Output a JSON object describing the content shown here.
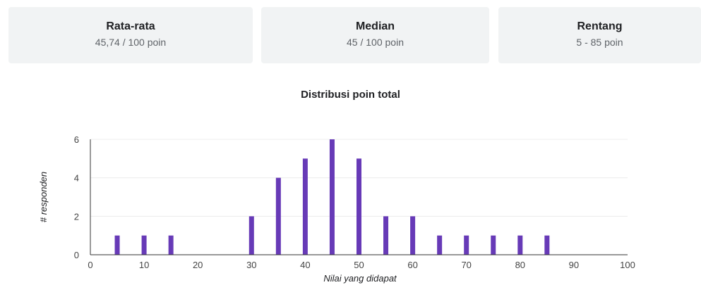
{
  "summary": {
    "mean": {
      "label": "Rata-rata",
      "value": "45,74 / 100 poin"
    },
    "median": {
      "label": "Median",
      "value": "45 / 100 poin"
    },
    "range": {
      "label": "Rentang",
      "value": "5 - 85 poin"
    }
  },
  "chart_data": {
    "type": "bar",
    "title": "Distribusi poin total",
    "xlabel": "Nilai yang didapat",
    "ylabel": "# responden",
    "x": [
      5,
      10,
      15,
      30,
      35,
      40,
      45,
      50,
      55,
      60,
      65,
      70,
      75,
      80,
      85
    ],
    "values": [
      1,
      1,
      1,
      2,
      4,
      5,
      6,
      5,
      2,
      2,
      1,
      1,
      1,
      1,
      1
    ],
    "xlim": [
      0,
      100
    ],
    "ylim": [
      0,
      6
    ],
    "xticks": [
      0,
      10,
      20,
      30,
      40,
      50,
      60,
      70,
      80,
      90,
      100
    ],
    "yticks": [
      0,
      2,
      4,
      6
    ],
    "grid": true,
    "bar_color": "#673ab7"
  }
}
